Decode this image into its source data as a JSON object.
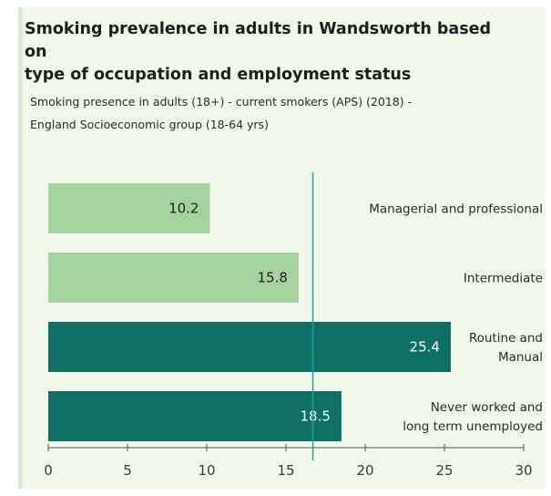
{
  "header": {
    "title_line1": "Smoking prevalence in adults in Wandsworth based on",
    "title_line2": "type of occupation and employment status",
    "subtitle_line1": "Smoking presence in adults (18+) - current smokers (APS) (2018) -",
    "subtitle_line2": "England Socioeconomic group (18-64 yrs)"
  },
  "chart_data": {
    "type": "bar",
    "orientation": "horizontal",
    "categories": [
      [
        "Managerial and professional"
      ],
      [
        "Intermediate"
      ],
      [
        "Routine and",
        "Manual"
      ],
      [
        "Never worked and",
        "long term unemployed"
      ]
    ],
    "values": [
      10.2,
      15.8,
      25.4,
      18.5
    ],
    "data_labels": [
      "10.2",
      "15.8",
      "25.4",
      "18.5"
    ],
    "bar_colors": [
      "#a3d49e",
      "#a3d49e",
      "#0e7066",
      "#0e7066"
    ],
    "label_colors": [
      "#1e1e1e",
      "#1e1e1e",
      "#ffffff",
      "#ffffff"
    ],
    "xlim": [
      0,
      30
    ],
    "xticks": [
      0,
      5,
      10,
      15,
      20,
      25,
      30
    ],
    "reference_line": {
      "value": 16.7,
      "color": "#1aa0a0"
    },
    "grid": false,
    "legend": "none"
  }
}
